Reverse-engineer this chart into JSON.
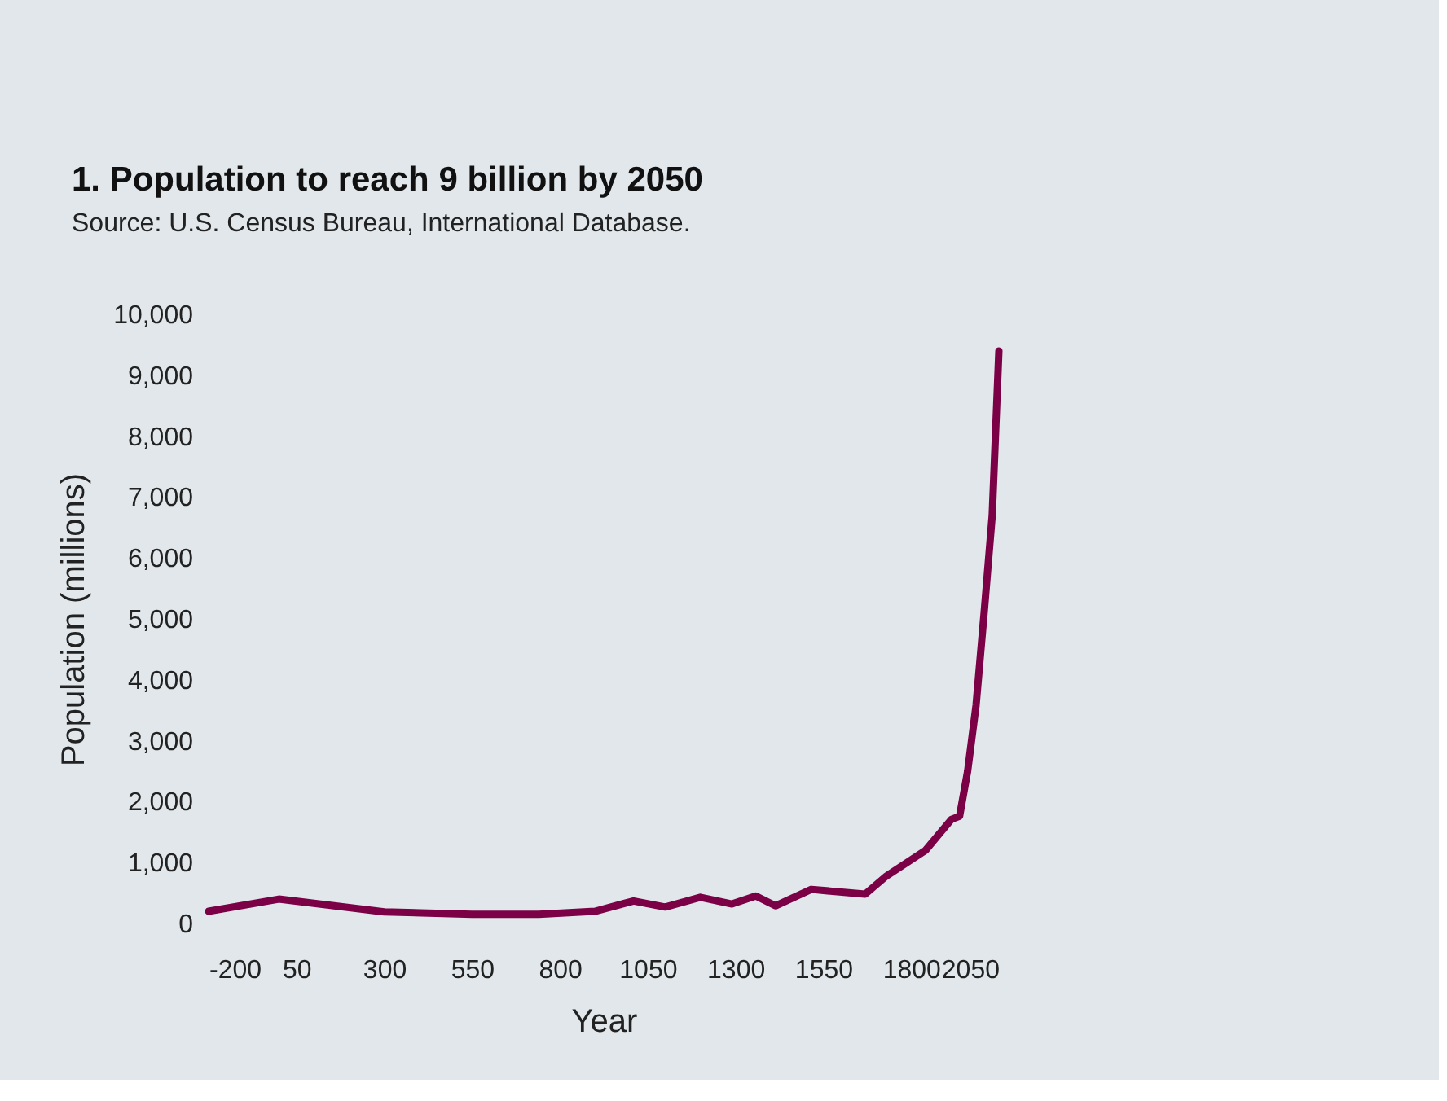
{
  "chart_data": {
    "type": "line",
    "title": "1. Population to reach 9 billion by 2050",
    "subtitle": "Source: U.S. Census Bureau, International Database.",
    "xlabel": "Year",
    "ylabel": "Population (millions)",
    "x": [
      -200,
      0,
      300,
      550,
      740,
      900,
      1010,
      1073,
      1100,
      1200,
      1290,
      1358,
      1414,
      1516,
      1669,
      1730,
      1841,
      1915,
      1938,
      1961,
      1985,
      2008,
      2031,
      2050
    ],
    "series": [
      {
        "color": "#7b0046",
        "values": [
          200,
          400,
          190,
          150,
          150,
          200,
          370,
          300,
          270,
          430,
          320,
          450,
          290,
          560,
          480,
          780,
          1200,
          1710,
          1760,
          2500,
          3580,
          5100,
          6700,
          9400
        ]
      }
    ],
    "xlim": [
      -200,
      2050
    ],
    "xticks": [
      -200,
      50,
      300,
      550,
      800,
      1050,
      1300,
      1550,
      1800,
      2050
    ],
    "ylim": [
      0,
      10000
    ],
    "yticks": [
      0,
      {
        "value": 1000,
        "label": "1,000"
      },
      {
        "value": 2000,
        "label": "2,000"
      },
      {
        "value": 3000,
        "label": "3,000"
      },
      {
        "value": 4000,
        "label": "4,000"
      },
      {
        "value": 5000,
        "label": "5,000"
      },
      {
        "value": 6000,
        "label": "6,000"
      },
      {
        "value": 7000,
        "label": "7,000"
      },
      {
        "value": 8000,
        "label": "8,000"
      },
      {
        "value": 9000,
        "label": "9,000"
      },
      {
        "value": 10000,
        "label": "10,000"
      }
    ],
    "grid": false,
    "marker": "none",
    "line_style": "solid"
  }
}
